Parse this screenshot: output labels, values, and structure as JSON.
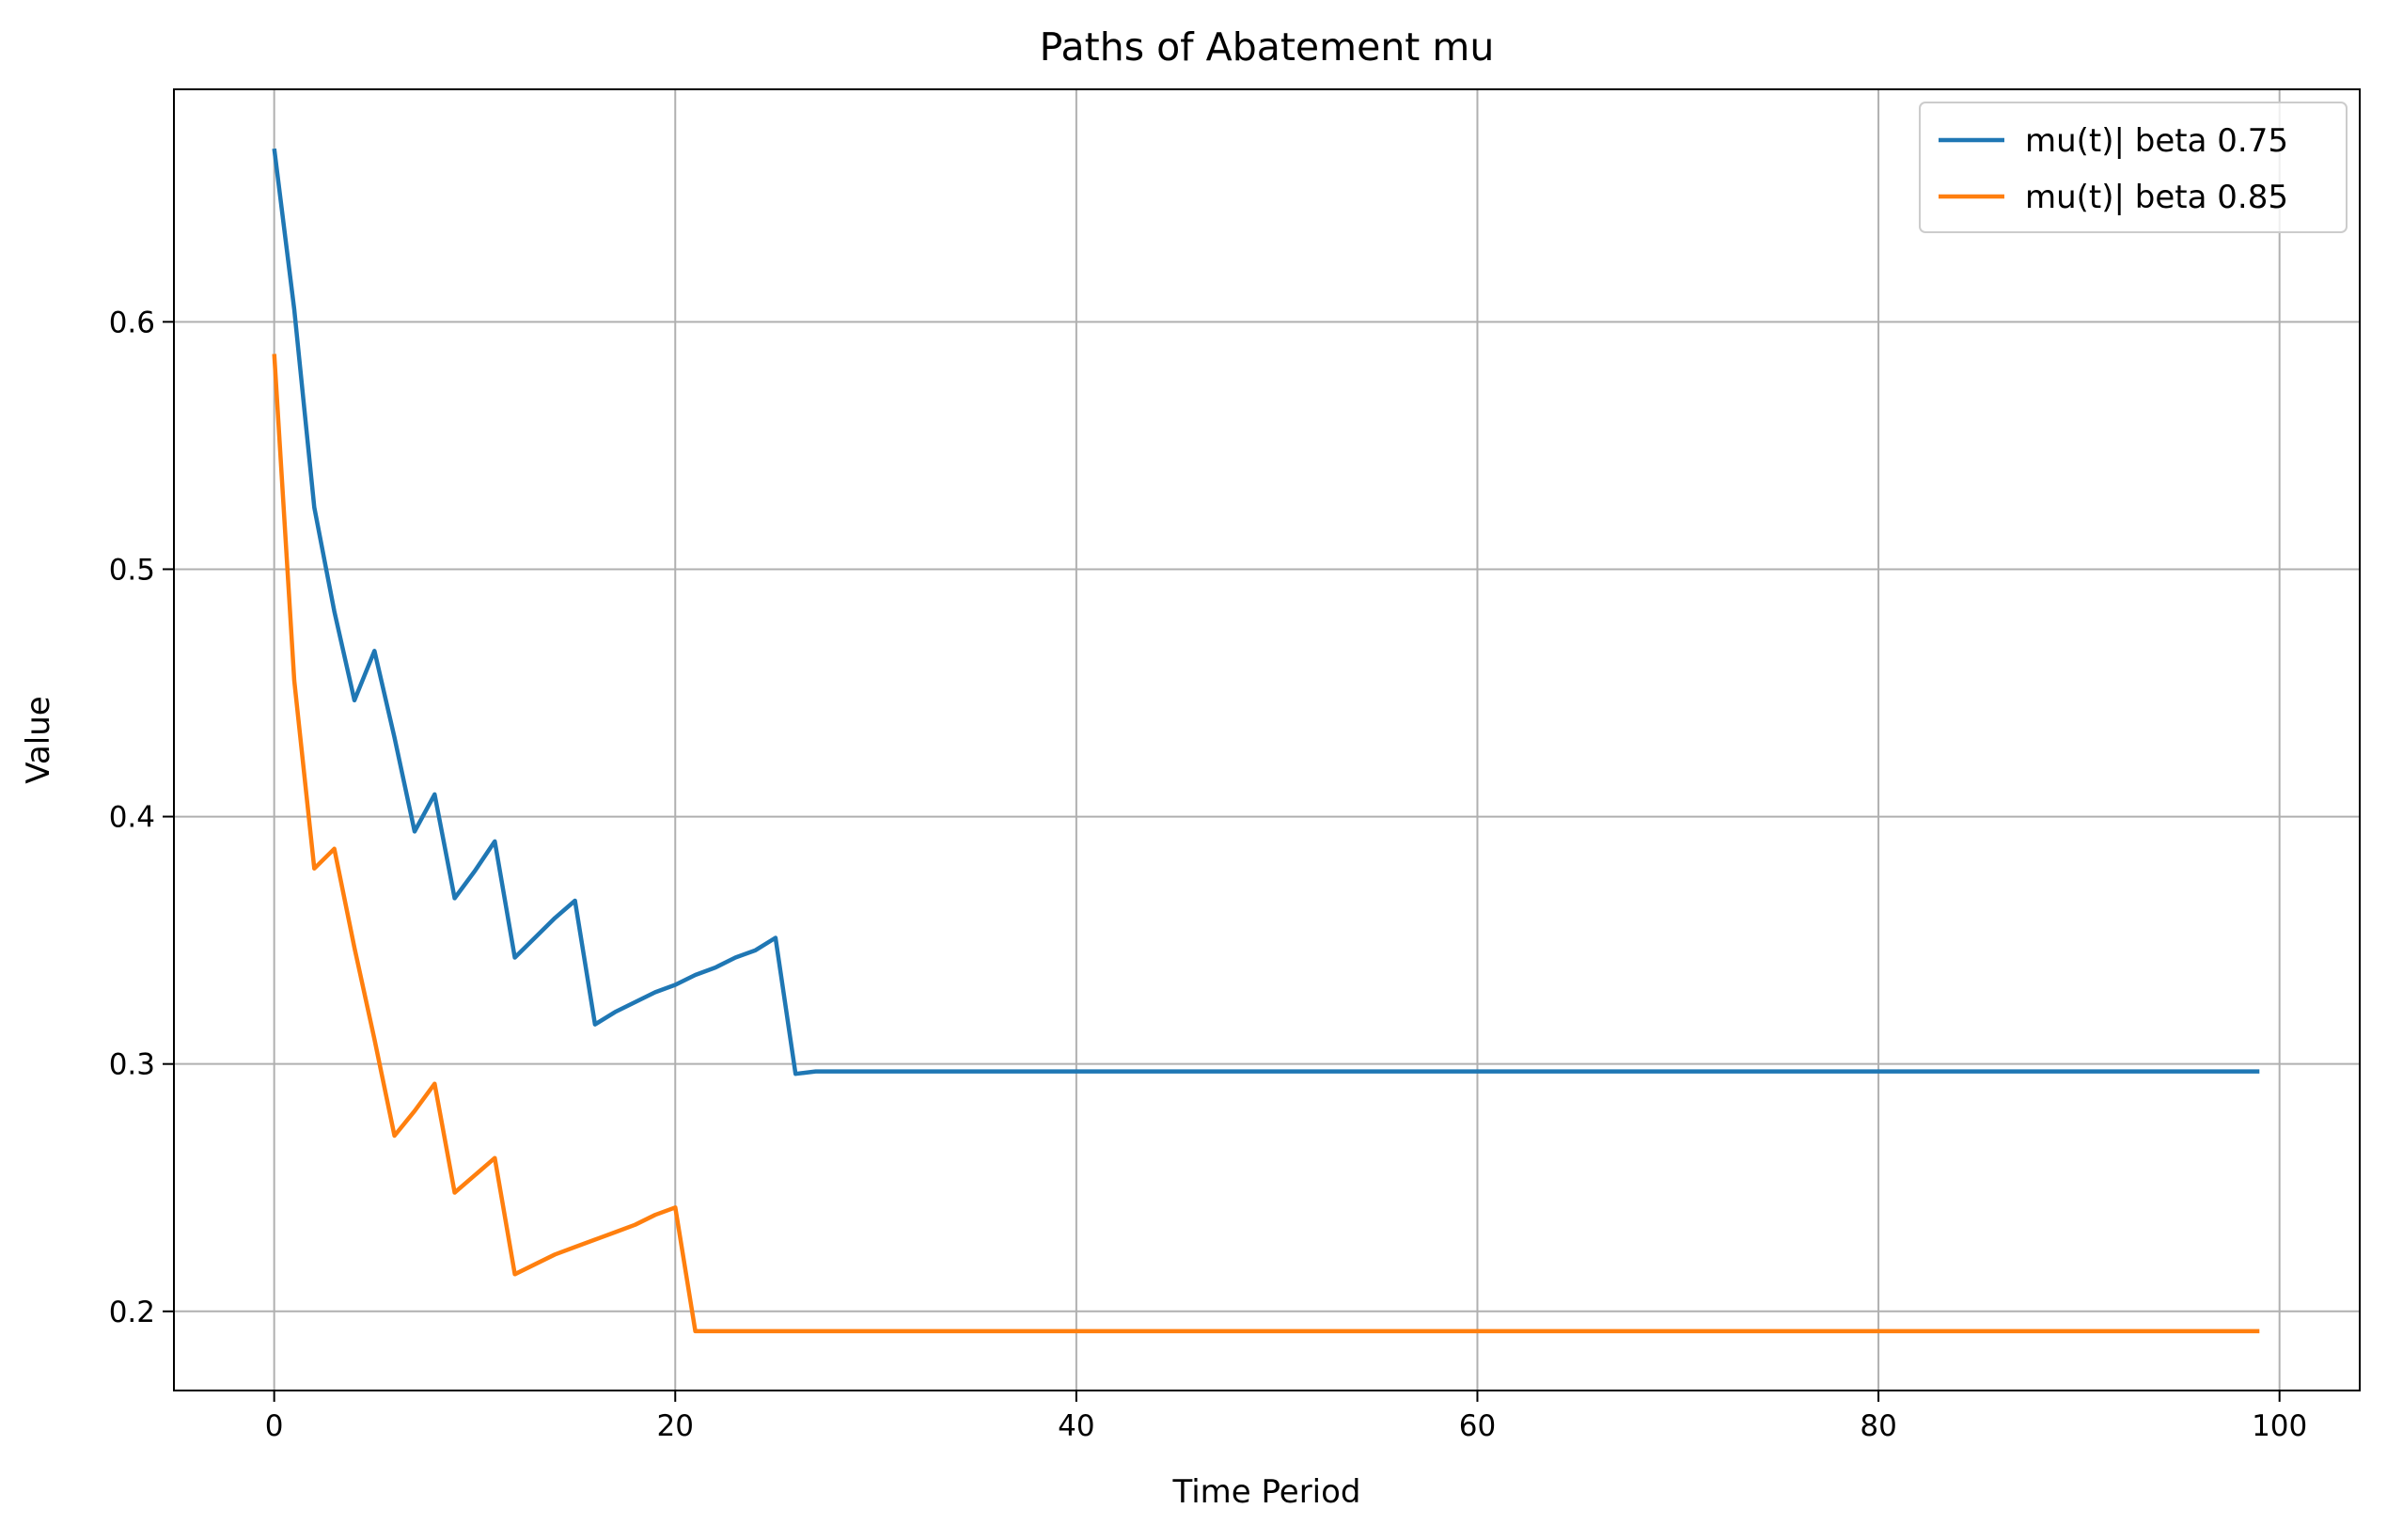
{
  "chart_data": {
    "type": "line",
    "title": "Paths of Abatement mu",
    "xlabel": "Time Period",
    "ylabel": "Value",
    "xlim": [
      -5,
      104
    ],
    "ylim": [
      0.168,
      0.694
    ],
    "xticks": [
      0,
      20,
      40,
      60,
      80,
      100
    ],
    "yticks": [
      0.2,
      0.3,
      0.4,
      0.5,
      0.6
    ],
    "xtick_labels": [
      "0",
      "20",
      "40",
      "60",
      "80",
      "100"
    ],
    "ytick_labels": [
      "0.2",
      "0.3",
      "0.4",
      "0.5",
      "0.6"
    ],
    "grid": true,
    "legend_position": "top-right",
    "series": [
      {
        "name": "mu(t)| beta 0.75",
        "color": "#1f77b4",
        "x": [
          0,
          1,
          2,
          3,
          4,
          5,
          6,
          7,
          8,
          9,
          10,
          11,
          12,
          13,
          14,
          15,
          16,
          17,
          18,
          19,
          20,
          21,
          22,
          23,
          24,
          25,
          26,
          27,
          99
        ],
        "y": [
          0.67,
          0.605,
          0.525,
          0.483,
          0.447,
          0.467,
          0.432,
          0.394,
          0.409,
          0.367,
          0.378,
          0.39,
          0.343,
          0.351,
          0.359,
          0.366,
          0.316,
          0.321,
          0.325,
          0.329,
          0.332,
          0.336,
          0.339,
          0.343,
          0.346,
          0.351,
          0.296,
          0.297,
          0.297
        ]
      },
      {
        "name": "mu(t)| beta 0.85",
        "color": "#ff7f0e",
        "x": [
          0,
          1,
          2,
          3,
          4,
          5,
          6,
          7,
          8,
          9,
          10,
          11,
          12,
          13,
          14,
          15,
          16,
          17,
          18,
          19,
          20,
          21,
          22,
          99
        ],
        "y": [
          0.587,
          0.455,
          0.379,
          0.387,
          0.347,
          0.31,
          0.271,
          0.281,
          0.292,
          0.248,
          0.255,
          0.262,
          0.215,
          0.219,
          0.223,
          0.226,
          0.229,
          0.232,
          0.235,
          0.239,
          0.242,
          0.192,
          0.192,
          0.192
        ]
      }
    ]
  }
}
